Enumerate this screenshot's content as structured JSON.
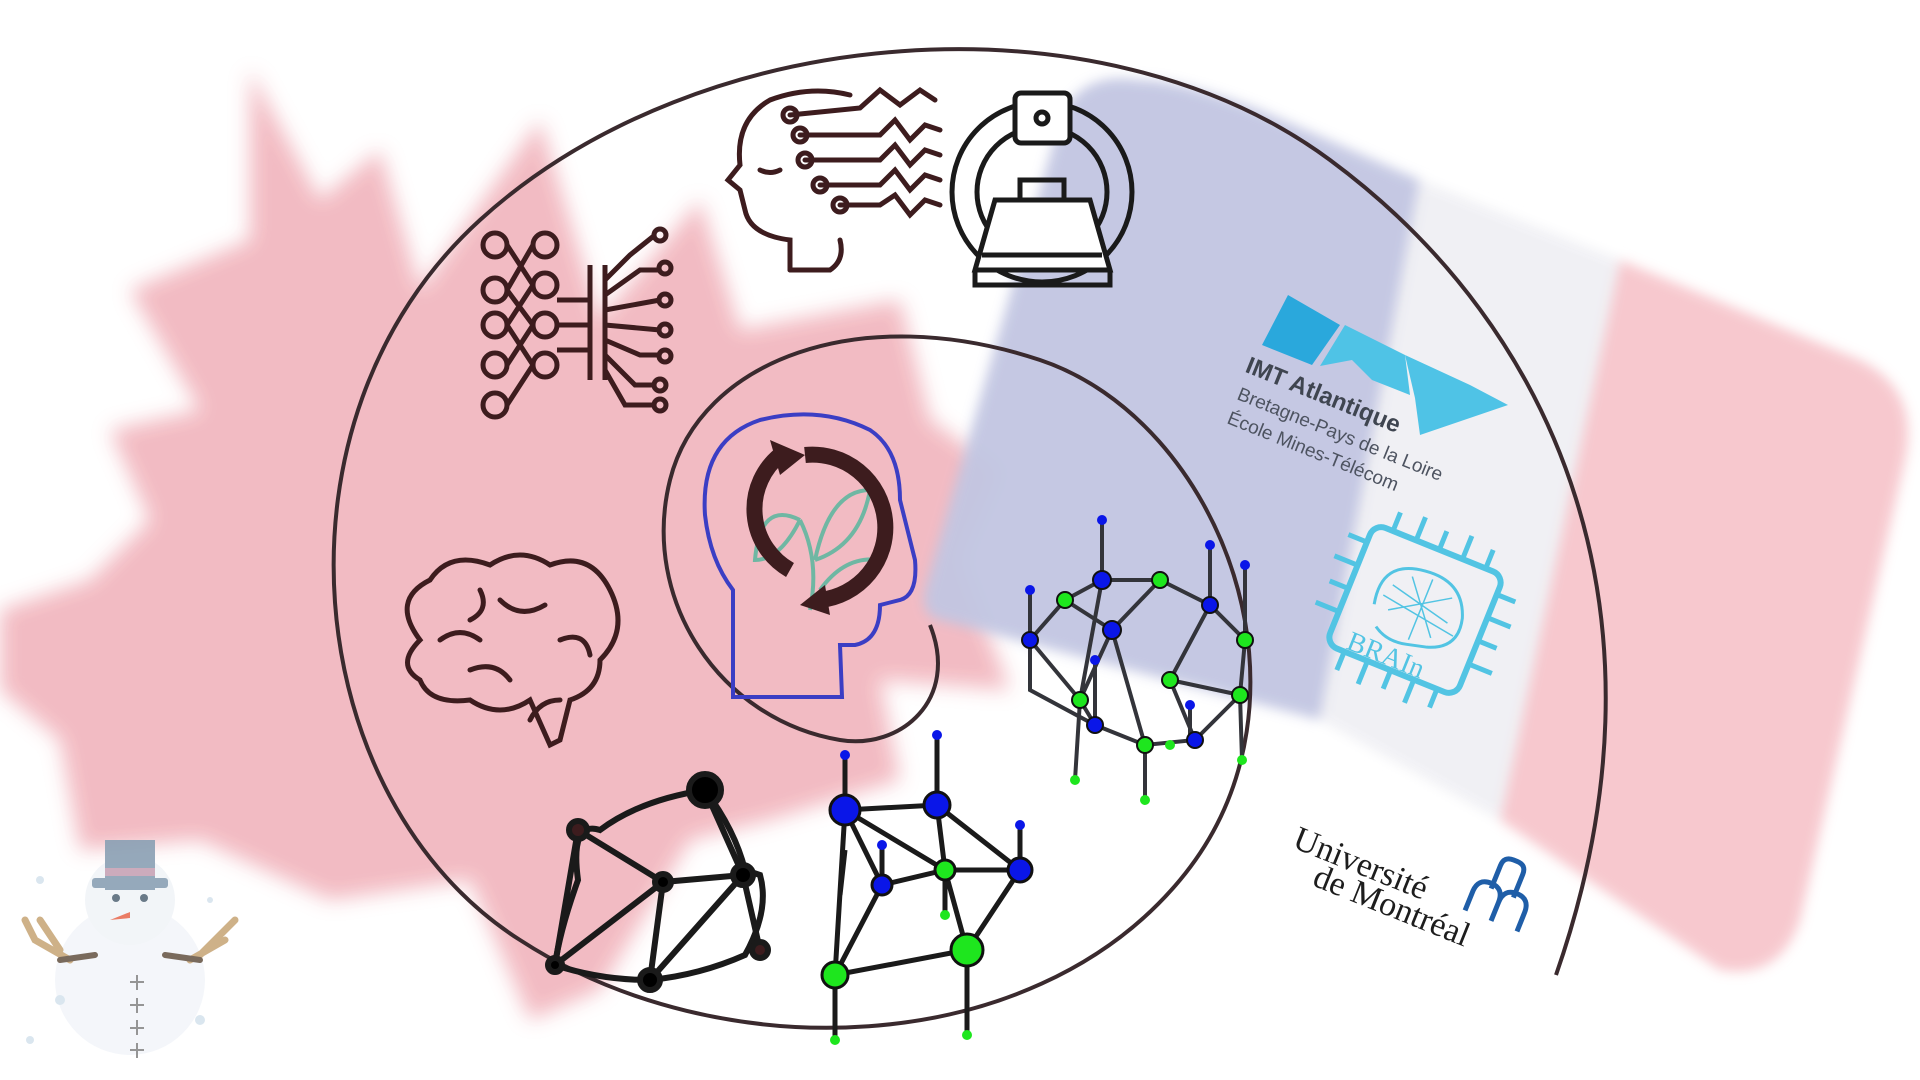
{
  "logos": {
    "imt": {
      "title": "IMT Atlantique",
      "line1": "Bretagne-Pays de la Loire",
      "line2": "École Mines-Télécom",
      "color": "#2aa8dc"
    },
    "brain_lab": {
      "label": "BRAIn",
      "color": "#52c4e3"
    },
    "udem": {
      "line1": "Université",
      "line2": "de Montréal",
      "mark_color": "#1f5ea8"
    }
  },
  "icons": [
    "sustainable-ai-head-icon",
    "neural-network-icon",
    "ai-head-circuit-icon",
    "mri-scanner-icon",
    "brain-icon",
    "graph-network-icon",
    "graph-neural-network-icon",
    "brain-graph-network-icon",
    "snowman-icon"
  ],
  "colors": {
    "canada_red": "#f2b8c0",
    "france_blue": "#c2c6e2",
    "france_red": "#f7c6cc",
    "icon_dark": "#3d1c1e",
    "node_blue": "#0a16e8",
    "node_green": "#1ee61e",
    "leaf_teal": "#6fb7a3",
    "head_blue": "#3b3ec4"
  }
}
